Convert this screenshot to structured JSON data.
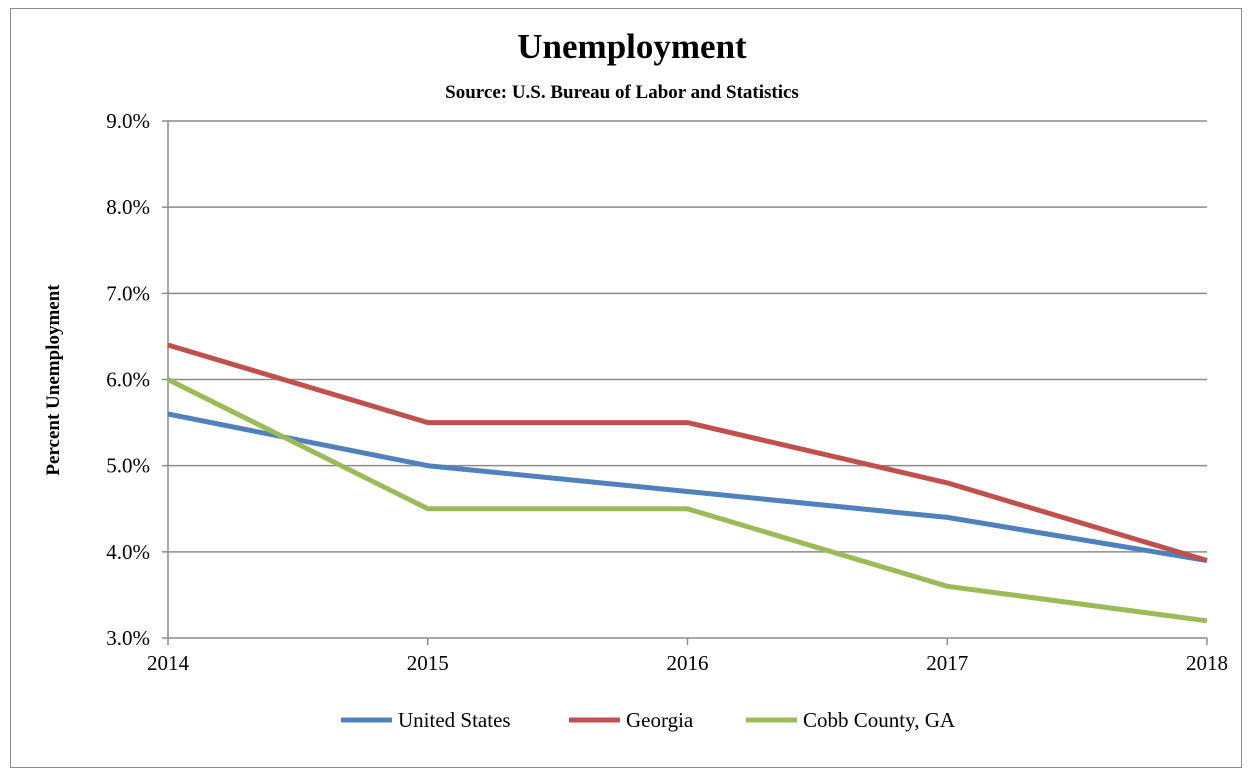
{
  "chart_data": {
    "type": "line",
    "title": "Unemployment",
    "subtitle": "Source: U.S. Bureau of Labor and Statistics",
    "xlabel": "",
    "ylabel": "Percent Unemployment",
    "x": [
      "2014",
      "2015",
      "2016",
      "2017",
      "2018"
    ],
    "ylim": [
      3.0,
      9.0
    ],
    "yticks": [
      "3.0%",
      "4.0%",
      "5.0%",
      "6.0%",
      "7.0%",
      "8.0%",
      "9.0%"
    ],
    "grid": true,
    "legend_position": "bottom",
    "series": [
      {
        "name": "United States",
        "color": "#4f81bd",
        "values": [
          5.6,
          5.0,
          4.7,
          4.4,
          3.9
        ]
      },
      {
        "name": "Georgia",
        "color": "#c0504d",
        "values": [
          6.4,
          5.5,
          5.5,
          4.8,
          3.9
        ]
      },
      {
        "name": "Cobb County, GA",
        "color": "#9bbb59",
        "values": [
          6.0,
          4.5,
          4.5,
          3.6,
          3.2
        ]
      }
    ]
  }
}
